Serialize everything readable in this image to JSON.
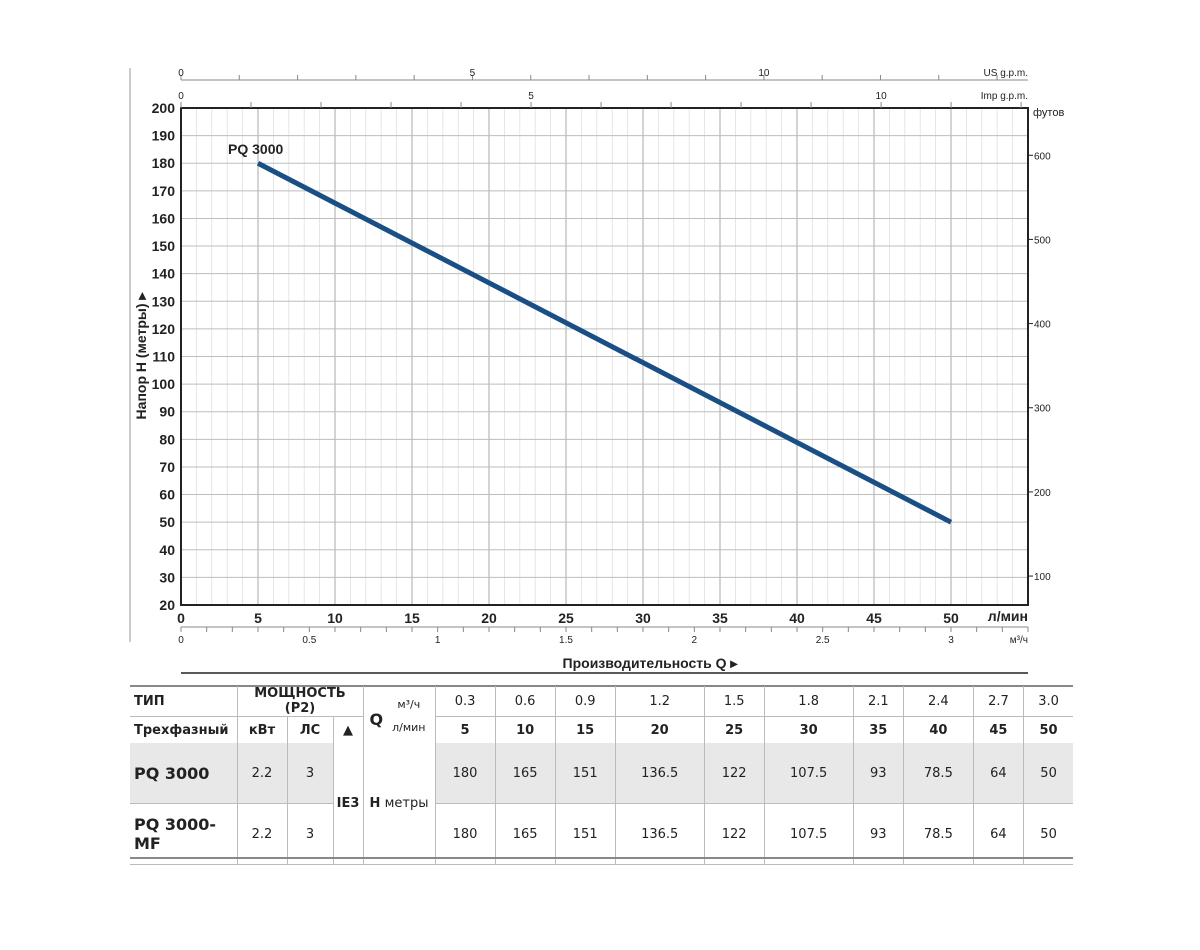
{
  "chart_data": {
    "type": "line",
    "xlabel": "Производительность Q",
    "ylabel": "Напор H (метры)",
    "x_unit": "л/мин",
    "xlim": [
      0,
      50
    ],
    "ylim": [
      20,
      200
    ],
    "x_ticks": [
      0,
      5,
      10,
      15,
      20,
      25,
      30,
      35,
      40,
      45,
      50
    ],
    "y_ticks": [
      20,
      30,
      40,
      50,
      60,
      70,
      80,
      90,
      100,
      110,
      120,
      130,
      140,
      150,
      160,
      170,
      180,
      190,
      200
    ],
    "grid": true,
    "series": [
      {
        "name": "PQ 3000",
        "color": "#1a4f86",
        "x": [
          5,
          50
        ],
        "y": [
          180,
          50
        ]
      }
    ],
    "secondary_axes": {
      "us_gpm": {
        "label": "US g.p.m.",
        "ticks": [
          0,
          5,
          10
        ]
      },
      "imp_gpm": {
        "label": "Imp g.p.m.",
        "ticks": [
          0,
          5,
          10
        ]
      },
      "m3h": {
        "label": "м³/ч",
        "ticks": [
          "0",
          "0.5",
          "1",
          "1.5",
          "2",
          "2.5",
          "3"
        ]
      },
      "feet": {
        "label": "футов",
        "ticks": [
          100,
          200,
          300,
          400,
          500,
          600
        ]
      }
    }
  },
  "table": {
    "type_header": "ТИП",
    "phase_header": "Трехфазный",
    "power_header": "МОЩНОСТЬ (P2)",
    "kw": "кВт",
    "hp": "ЛС",
    "triangle": "▲",
    "q": "Q",
    "q_m3h": "м³/ч",
    "q_lmin": "л/мин",
    "h_label": "H",
    "h_unit": "метры",
    "ie": "IE3",
    "m3h": [
      "0.3",
      "0.6",
      "0.9",
      "1.2",
      "1.5",
      "1.8",
      "2.1",
      "2.4",
      "2.7",
      "3.0"
    ],
    "lmin": [
      "5",
      "10",
      "15",
      "20",
      "25",
      "30",
      "35",
      "40",
      "45",
      "50"
    ],
    "rows": [
      {
        "model": "PQ 3000",
        "kw": "2.2",
        "hp": "3",
        "h": [
          "180",
          "165",
          "151",
          "136.5",
          "122",
          "107.5",
          "93",
          "78.5",
          "64",
          "50"
        ]
      },
      {
        "model": "PQ 3000-MF",
        "kw": "2.2",
        "hp": "3",
        "h": [
          "180",
          "165",
          "151",
          "136.5",
          "122",
          "107.5",
          "93",
          "78.5",
          "64",
          "50"
        ]
      }
    ]
  }
}
